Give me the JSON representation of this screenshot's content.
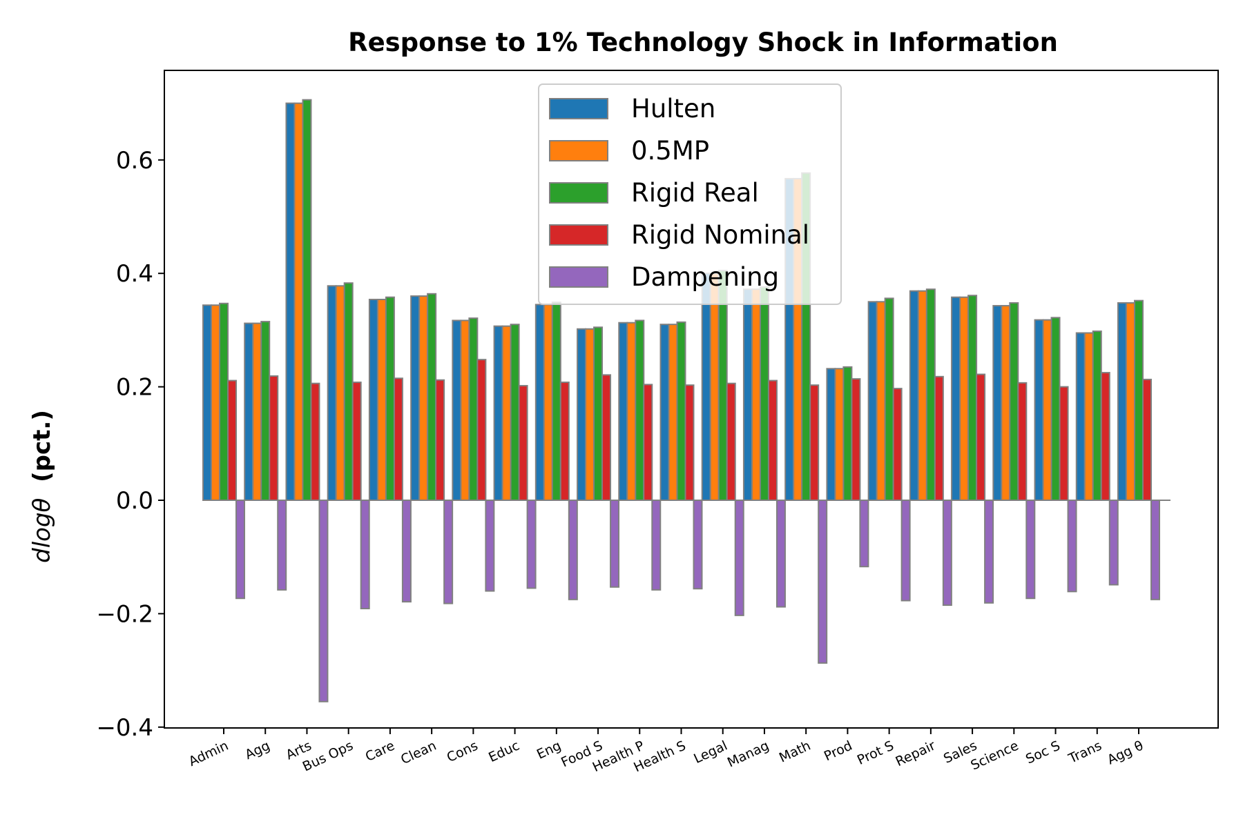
{
  "chart_data": {
    "type": "bar",
    "title": "Response to 1% Technology Shock in Information",
    "ylabel_math": "dlogθ",
    "ylabel_text": "(pct.)",
    "ylim": [
      -0.4,
      0.75
    ],
    "yticks": [
      {
        "value": -0.4,
        "label": "−0.4"
      },
      {
        "value": -0.2,
        "label": "−0.2"
      },
      {
        "value": 0.0,
        "label": "0.0"
      },
      {
        "value": 0.2,
        "label": "0.2"
      },
      {
        "value": 0.4,
        "label": "0.4"
      },
      {
        "value": 0.6,
        "label": "0.6"
      }
    ],
    "categories": [
      "Admin",
      "Agg",
      "Arts",
      "Bus Ops",
      "Care",
      "Clean",
      "Cons",
      "Educ",
      "Eng",
      "Food S",
      "Health P",
      "Health S",
      "Legal",
      "Manag",
      "Math",
      "Prod",
      "Prot S",
      "Repair",
      "Sales",
      "Science",
      "Soc S",
      "Trans",
      "Agg θ"
    ],
    "legend_position": "upper center",
    "series": [
      {
        "name": "Hulten",
        "color": "#1f77b4",
        "values": [
          0.344,
          0.312,
          0.7,
          0.378,
          0.354,
          0.36,
          0.317,
          0.307,
          0.345,
          0.302,
          0.313,
          0.31,
          0.4,
          0.372,
          0.567,
          0.232,
          0.35,
          0.369,
          0.358,
          0.343,
          0.318,
          0.295,
          0.348
        ]
      },
      {
        "name": "0.5MP",
        "color": "#ff7f0e",
        "values": [
          0.344,
          0.312,
          0.7,
          0.378,
          0.354,
          0.36,
          0.317,
          0.307,
          0.345,
          0.302,
          0.313,
          0.31,
          0.4,
          0.372,
          0.567,
          0.232,
          0.35,
          0.369,
          0.358,
          0.343,
          0.318,
          0.295,
          0.348
        ]
      },
      {
        "name": "Rigid Real",
        "color": "#2ca02c",
        "values": [
          0.347,
          0.315,
          0.706,
          0.383,
          0.358,
          0.364,
          0.321,
          0.31,
          0.349,
          0.305,
          0.317,
          0.314,
          0.405,
          0.376,
          0.577,
          0.235,
          0.356,
          0.372,
          0.361,
          0.348,
          0.322,
          0.298,
          0.352
        ]
      },
      {
        "name": "Rigid Nominal",
        "color": "#d62728",
        "values": [
          0.211,
          0.219,
          0.206,
          0.208,
          0.215,
          0.212,
          0.248,
          0.202,
          0.208,
          0.221,
          0.204,
          0.203,
          0.206,
          0.211,
          0.203,
          0.214,
          0.197,
          0.218,
          0.222,
          0.207,
          0.2,
          0.225,
          0.213
        ]
      },
      {
        "name": "Dampening",
        "color": "#9467bd",
        "values": [
          -0.173,
          -0.158,
          -0.355,
          -0.191,
          -0.179,
          -0.182,
          -0.16,
          -0.155,
          -0.175,
          -0.153,
          -0.158,
          -0.156,
          -0.203,
          -0.188,
          -0.287,
          -0.117,
          -0.177,
          -0.185,
          -0.181,
          -0.173,
          -0.161,
          -0.149,
          -0.175
        ]
      }
    ]
  }
}
